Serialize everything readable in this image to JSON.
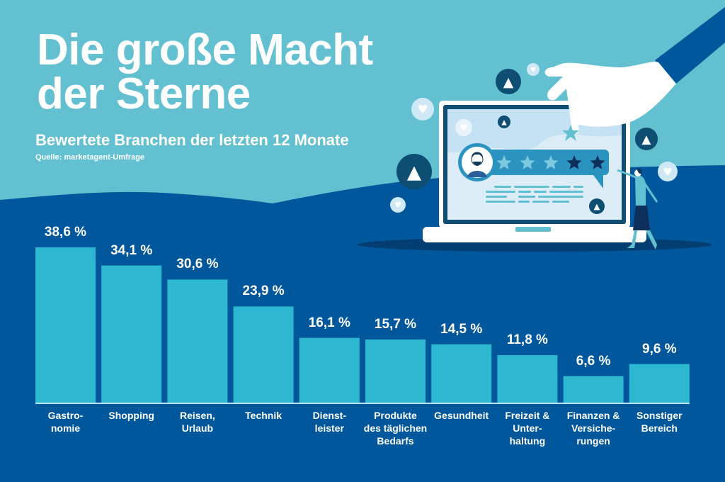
{
  "header": {
    "title_line1": "Die große Macht",
    "title_line2": "der Sterne",
    "subtitle": "Bewertete Branchen der letzten 12 Monate",
    "source": "Quelle: marketagent-Umfrage"
  },
  "colors": {
    "sky": "#62c0d0",
    "navy": "#01579b",
    "bar": "#2bb8d0",
    "text": "#ffffff",
    "dark_icon": "#0e4e72",
    "screen": "#dcedf8"
  },
  "illustration": {
    "rating_stars_filled": 3,
    "rating_stars_total": 5,
    "icons": [
      "thumbs-up-icon",
      "heart-icon",
      "star-icon",
      "laptop-icon",
      "hand-icon",
      "avatar-icon",
      "woman-figure-icon"
    ]
  },
  "chart_data": {
    "type": "bar",
    "title": "Die große Macht der Sterne",
    "subtitle": "Bewertete Branchen der letzten 12 Monate",
    "xlabel": "",
    "ylabel": "",
    "unit": "%",
    "ylim": [
      0,
      40
    ],
    "grid": false,
    "legend": "none",
    "categories": [
      "Gastro-\nnomie",
      "Shopping",
      "Reisen,\nUrlaub",
      "Technik",
      "Dienst-\nleister",
      "Produkte\ndes täglichen\nBedarfs",
      "Gesundheit",
      "Freizeit &\nUnter-\nhaltung",
      "Finanzen &\nVersiche-\nrungen",
      "Sonstiger\nBereich"
    ],
    "values": [
      38.6,
      34.1,
      30.6,
      23.9,
      16.1,
      15.7,
      14.5,
      11.8,
      6.6,
      9.6
    ],
    "value_labels": [
      "38,6 %",
      "34,1 %",
      "30,6 %",
      "23,9 %",
      "16,1 %",
      "15,7 %",
      "14,5 %",
      "11,8 %",
      "6,6 %",
      "9,6 %"
    ]
  }
}
